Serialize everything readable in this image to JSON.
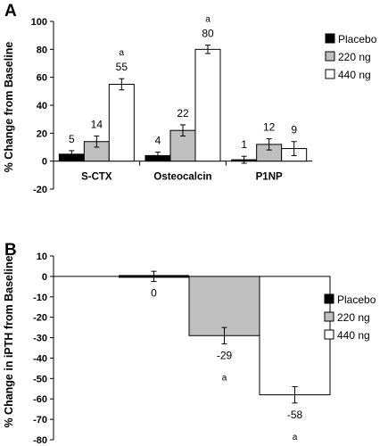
{
  "chart_data": [
    {
      "panel": "A",
      "type": "bar",
      "ylabel": "% Change from Baseline",
      "ylim": [
        -20,
        100
      ],
      "yticks": [
        -20,
        0,
        20,
        40,
        60,
        80,
        100
      ],
      "categories": [
        "S-CTX",
        "Osteocalcin",
        "P1NP"
      ],
      "legend_position": "top-right",
      "series": [
        {
          "name": "Placebo",
          "color": "#000000",
          "values": [
            5,
            4,
            1
          ],
          "errors": [
            2.5,
            2.5,
            2.5
          ],
          "labels": [
            "5",
            "4",
            "1"
          ],
          "sig": [
            "",
            "",
            ""
          ]
        },
        {
          "name": "220 ng",
          "color": "#bfbfbf",
          "values": [
            14,
            22,
            12
          ],
          "errors": [
            4,
            4,
            4
          ],
          "labels": [
            "14",
            "22",
            "12"
          ],
          "sig": [
            "",
            "",
            ""
          ]
        },
        {
          "name": "440 ng",
          "color": "#ffffff",
          "values": [
            55,
            80,
            9
          ],
          "errors": [
            4,
            3,
            5
          ],
          "labels": [
            "55",
            "80",
            "9"
          ],
          "sig": [
            "a",
            "a",
            ""
          ]
        }
      ]
    },
    {
      "panel": "B",
      "type": "bar",
      "ylabel": "% Change in iPTH from Baseline",
      "ylim": [
        -80,
        10
      ],
      "yticks": [
        -80,
        -70,
        -60,
        -50,
        -40,
        -30,
        -20,
        -10,
        0,
        10
      ],
      "categories": [
        ""
      ],
      "legend_position": "center-right",
      "series": [
        {
          "name": "Placebo",
          "color": "#000000",
          "values": [
            0
          ],
          "errors": [
            2.5
          ],
          "labels": [
            "0"
          ],
          "sig": [
            ""
          ]
        },
        {
          "name": "220 ng",
          "color": "#bfbfbf",
          "values": [
            -29
          ],
          "errors": [
            4
          ],
          "labels": [
            "-29"
          ],
          "sig": [
            "a"
          ]
        },
        {
          "name": "440 ng",
          "color": "#ffffff",
          "values": [
            -58
          ],
          "errors": [
            4
          ],
          "labels": [
            "-58"
          ],
          "sig": [
            "a"
          ]
        }
      ]
    }
  ]
}
